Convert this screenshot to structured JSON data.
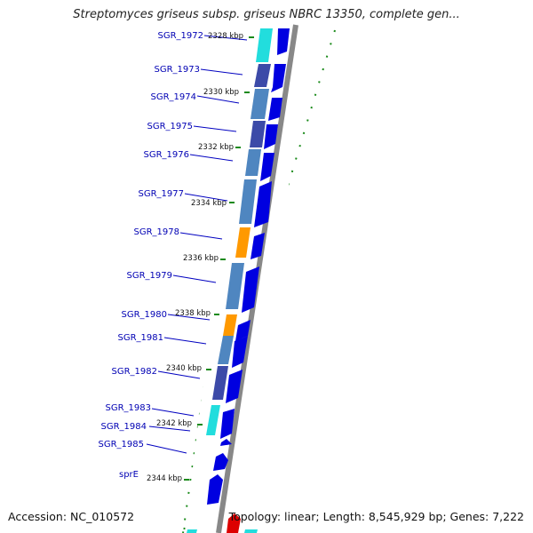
{
  "title": "Streptomyces griseus subsp. griseus NBRC 13350, complete gen...",
  "accession": "Accession: NC_010572",
  "summary": "Topology: linear; Length: 8,545,929 bp; Genes: 7,222",
  "colors": {
    "gene_arrow": "#0000e0",
    "label": "#0000b4",
    "feature_cyan": "#22dddd",
    "feature_steelblue": "#4f86c0",
    "feature_indigo": "#3c4aa8",
    "feature_orange": "#ff9900",
    "feature_red": "#dd0000",
    "tick_green": "#006600",
    "backbone": "#999999"
  },
  "genes": [
    {
      "name": "SGR_1972"
    },
    {
      "name": "SGR_1973"
    },
    {
      "name": "SGR_1974"
    },
    {
      "name": "SGR_1975"
    },
    {
      "name": "SGR_1976"
    },
    {
      "name": "SGR_1977"
    },
    {
      "name": "SGR_1978"
    },
    {
      "name": "SGR_1979"
    },
    {
      "name": "SGR_1980"
    },
    {
      "name": "SGR_1981"
    },
    {
      "name": "SGR_1982"
    },
    {
      "name": "SGR_1983"
    },
    {
      "name": "SGR_1984"
    },
    {
      "name": "SGR_1985"
    },
    {
      "name": "sprE"
    }
  ],
  "kbp_ticks": [
    "2328 kbp",
    "2330 kbp",
    "2332 kbp",
    "2334 kbp",
    "2336 kbp",
    "2338 kbp",
    "2340 kbp",
    "2342 kbp",
    "2344 kbp"
  ]
}
